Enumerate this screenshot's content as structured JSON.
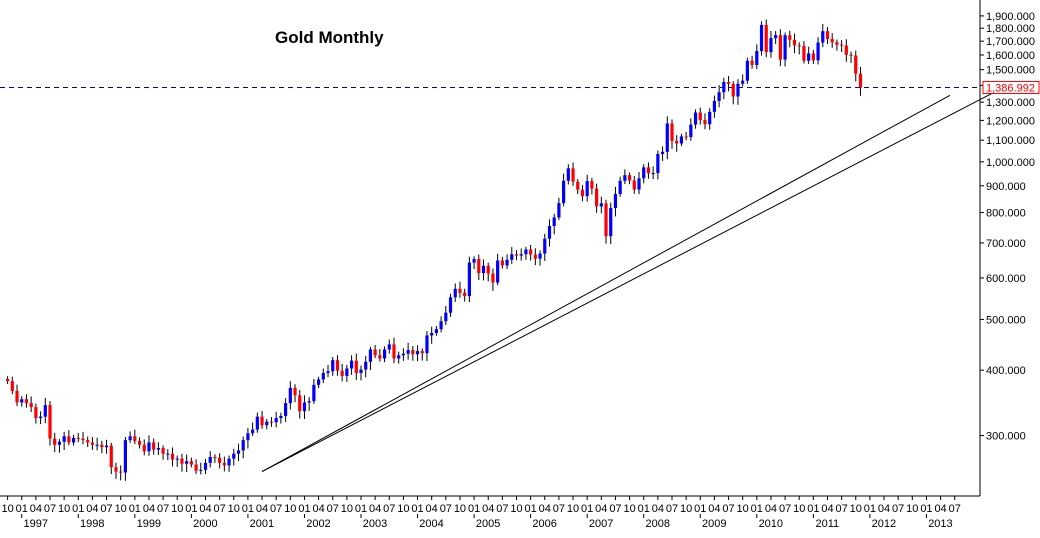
{
  "chart_data": {
    "type": "candlestick",
    "title": "Gold Monthly",
    "y_scale": "log",
    "ylim": [
      250,
      1950
    ],
    "xlim": [
      "1996-10",
      "2013-07"
    ],
    "grid": false,
    "y_tick_labels": [
      "1,900.000",
      "1,800.000",
      "1,700.000",
      "1,600.000",
      "1,500.000",
      "1,400.000",
      "1,300.000",
      "1,200.000",
      "1,100.000",
      "1,000.000",
      "900.000",
      "800.000",
      "700.000",
      "600.000",
      "500.000",
      "400.000",
      "300.000"
    ],
    "y_tick_values": [
      1900,
      1800,
      1700,
      1600,
      1500,
      1400,
      1300,
      1200,
      1100,
      1000,
      900,
      800,
      700,
      600,
      500,
      400,
      300
    ],
    "x_month_labels": [
      "10",
      "01",
      "04",
      "07",
      "10",
      "01",
      "04",
      "07",
      "10",
      "01",
      "04",
      "07",
      "10",
      "01",
      "04",
      "07",
      "10",
      "01",
      "04",
      "07",
      "10",
      "01",
      "04",
      "07",
      "10",
      "01",
      "04",
      "07",
      "10",
      "01",
      "04",
      "07",
      "10",
      "01",
      "04",
      "07",
      "10",
      "01",
      "04",
      "07",
      "10",
      "01",
      "04",
      "07",
      "10",
      "01",
      "04",
      "07",
      "10",
      "01",
      "04",
      "07",
      "10",
      "01",
      "04",
      "07",
      "10",
      "01",
      "04",
      "07",
      "10",
      "01",
      "04",
      "07",
      "10",
      "01",
      "04",
      "07"
    ],
    "x_year_labels": [
      "1997",
      "1998",
      "1999",
      "2000",
      "2001",
      "2002",
      "2003",
      "2004",
      "2005",
      "2006",
      "2007",
      "2008",
      "2009",
      "2010",
      "2011",
      "2012",
      "2013"
    ],
    "horizontal_line": {
      "value": 1386.992,
      "label": "1,386.992",
      "color": "#0000cc",
      "style": "dashed"
    },
    "trend_lines": [
      {
        "from": [
          "2001-04",
          256
        ],
        "to": [
          "2013-06",
          1340
        ]
      },
      {
        "from": [
          "2001-04",
          256
        ],
        "to": [
          "2013-07",
          1180
        ]
      }
    ],
    "colors": {
      "up": "#0000ff",
      "down": "#ff0000",
      "wick": "#000000",
      "axis": "#000000",
      "label_box": "#ff0000"
    },
    "start": "1996-10",
    "closes": [
      381,
      365,
      347,
      352,
      346,
      340,
      324,
      326,
      343,
      296,
      288,
      292,
      299,
      291,
      297,
      296,
      294,
      291,
      288,
      288,
      285,
      287,
      261,
      256,
      255,
      294,
      299,
      293,
      288,
      280,
      291,
      282,
      284,
      277,
      277,
      270,
      271,
      265,
      268,
      264,
      257,
      258,
      266,
      273,
      272,
      266,
      263,
      271,
      277,
      281,
      294,
      303,
      308,
      326,
      314,
      319,
      318,
      324,
      327,
      346,
      370,
      358,
      334,
      347,
      349,
      375,
      384,
      395,
      398,
      418,
      399,
      390,
      403,
      417,
      395,
      401,
      415,
      438,
      427,
      421,
      438,
      448,
      421,
      427,
      430,
      437,
      429,
      435,
      431,
      466,
      471,
      479,
      496,
      515,
      551,
      572,
      562,
      554,
      642,
      652,
      613,
      633,
      612,
      588,
      648,
      634,
      650,
      666,
      662,
      666,
      680,
      665,
      653,
      668,
      713,
      754,
      783,
      834,
      920,
      972,
      916,
      885,
      860,
      919,
      889,
      822,
      833,
      721,
      816,
      868,
      920,
      943,
      921,
      885,
      930,
      976,
      951,
      952,
      1035,
      1045,
      1184,
      1096,
      1084,
      1118,
      1115,
      1178,
      1242,
      1202,
      1180,
      1246,
      1307,
      1358,
      1421,
      1409,
      1333,
      1410,
      1429,
      1560,
      1531,
      1628,
      1826,
      1620,
      1723,
      1746,
      1568,
      1745,
      1710,
      1669,
      1664,
      1560,
      1611,
      1563,
      1690,
      1777,
      1716,
      1692,
      1674,
      1668,
      1601,
      1596,
      1474,
      1387
    ]
  }
}
